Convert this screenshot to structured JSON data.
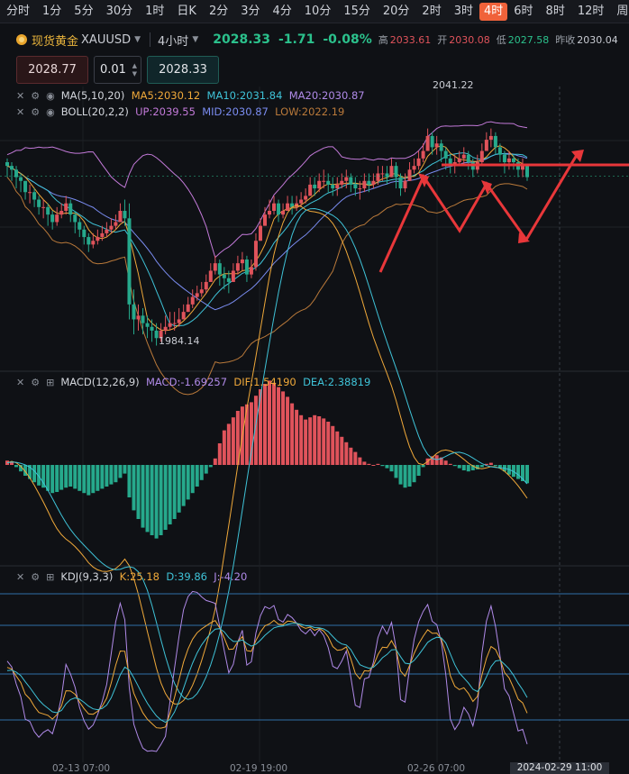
{
  "timeframes": [
    "分时",
    "1分",
    "5分",
    "30分",
    "1时",
    "日K",
    "2分",
    "3分",
    "4分",
    "10分",
    "15分",
    "20分",
    "2时",
    "3时",
    "4时",
    "6时",
    "8时",
    "12时",
    "周K"
  ],
  "active_timeframe": "4时",
  "symbol": {
    "name": "现货黄金",
    "code": "XAUUSD",
    "timeframe": "4小时",
    "price": "2028.33",
    "change": "-1.71",
    "change_pct": "-0.08%",
    "high_label": "高",
    "high": "2033.61",
    "open_label": "开",
    "open": "2030.08",
    "low_label": "低",
    "low": "2027.58",
    "prev_label": "昨收",
    "prev": "2030.04"
  },
  "order": {
    "sell": "2028.77",
    "qty": "0.01",
    "buy": "2028.33"
  },
  "indicators": {
    "ma": {
      "name": "MA(5,10,20)",
      "ma5": "MA5:2030.12",
      "ma10": "MA10:2031.84",
      "ma20": "MA20:2030.87"
    },
    "boll": {
      "name": "BOLL(20,2,2)",
      "up": "UP:2039.55",
      "mid": "MID:2030.87",
      "low": "LOW:2022.19"
    },
    "macd": {
      "name": "MACD(12,26,9)",
      "macd": "MACD:-1.69257",
      "dif": "DIF:1.54190",
      "dea": "DEA:2.38819"
    },
    "kdj": {
      "name": "KDJ(9,3,3)",
      "k": "K:25.18",
      "d": "D:39.86",
      "j": "J:-4.20"
    }
  },
  "annotations": {
    "high_mark": "2041.22",
    "low_mark": "1984.14"
  },
  "x_labels": [
    "02-13 07:00",
    "02-19 19:00",
    "02-26 07:00"
  ],
  "cursor_time": "2024-02-29 11:00",
  "colors": {
    "up": "#e0535b",
    "down": "#26a98c",
    "accent": "#f0623a",
    "annotation": "#e8373a"
  },
  "chart_data": {
    "type": "candlestick",
    "x_labels": [
      "02-13 07:00",
      "02-19 19:00",
      "02-26 07:00"
    ],
    "price_anchors": [
      {
        "label": "2041.22",
        "value": 2041.22
      },
      {
        "label": "1984.14",
        "value": 1984.14
      },
      {
        "label": "2028.33",
        "value": 2028.33
      }
    ],
    "close": [
      2031,
      2030,
      2028,
      2027,
      2024,
      2024,
      2022,
      2020,
      2020,
      2018,
      2016,
      2018,
      2019,
      2021,
      2018,
      2016,
      2014,
      2012,
      2010,
      2011,
      2012,
      2013,
      2014,
      2015,
      2016,
      2019,
      2017,
      1994,
      1990,
      1991,
      1989,
      1988,
      1987,
      1985,
      1987,
      1988,
      1989,
      1989,
      1990,
      1992,
      1994,
      1996,
      1997,
      1998,
      2000,
      2003,
      2005,
      2002,
      2001,
      2000,
      2003,
      2005,
      2006,
      2002,
      2004,
      2011,
      2015,
      2018,
      2019,
      2021,
      2018,
      2019,
      2021,
      2020,
      2021,
      2022,
      2023,
      2026,
      2025,
      2027,
      2027,
      2026,
      2025,
      2026,
      2027,
      2028,
      2026,
      2025,
      2025,
      2027,
      2026,
      2027,
      2029,
      2029,
      2028,
      2031,
      2028,
      2025,
      2027,
      2030,
      2031,
      2033,
      2035,
      2039,
      2036,
      2037,
      2035,
      2033,
      2031,
      2032,
      2033,
      2034,
      2032,
      2030,
      2032,
      2035,
      2038,
      2039,
      2036,
      2034,
      2032,
      2033,
      2032,
      2030,
      2031,
      2028
    ],
    "high": [
      2033,
      2032,
      2031,
      2029,
      2027,
      2026,
      2025,
      2023,
      2022,
      2021,
      2019,
      2020,
      2021,
      2023,
      2022,
      2019,
      2017,
      2015,
      2013,
      2013,
      2014,
      2015,
      2016,
      2017,
      2018,
      2021,
      2022,
      2021,
      1998,
      1994,
      1993,
      1991,
      1990,
      1989,
      1989,
      1991,
      1992,
      1992,
      1993,
      1994,
      1996,
      1998,
      1999,
      2000,
      2002,
      2005,
      2007,
      2006,
      2004,
      2003,
      2005,
      2007,
      2008,
      2007,
      2006,
      2013,
      2017,
      2020,
      2022,
      2023,
      2022,
      2021,
      2023,
      2023,
      2023,
      2024,
      2025,
      2028,
      2028,
      2029,
      2030,
      2029,
      2028,
      2028,
      2029,
      2030,
      2029,
      2028,
      2027,
      2029,
      2029,
      2029,
      2031,
      2031,
      2031,
      2033,
      2032,
      2029,
      2029,
      2032,
      2033,
      2035,
      2037,
      2041,
      2040,
      2039,
      2038,
      2036,
      2034,
      2034,
      2035,
      2036,
      2035,
      2033,
      2034,
      2037,
      2040,
      2041,
      2040,
      2037,
      2035,
      2035,
      2034,
      2033,
      2033,
      2031
    ],
    "low": [
      2028,
      2027,
      2025,
      2024,
      2022,
      2021,
      2020,
      2018,
      2017,
      2015,
      2014,
      2015,
      2017,
      2018,
      2016,
      2013,
      2012,
      2010,
      2008,
      2009,
      2010,
      2011,
      2012,
      2013,
      2014,
      2016,
      2015,
      1990,
      1986,
      1987,
      1986,
      1985,
      1984,
      1983,
      1984,
      1986,
      1987,
      1987,
      1988,
      1990,
      1992,
      1993,
      1995,
      1996,
      1997,
      2000,
      2002,
      1999,
      1998,
      1997,
      2000,
      2002,
      2003,
      2000,
      2001,
      2003,
      2012,
      2015,
      2017,
      2018,
      2016,
      2017,
      2019,
      2018,
      2019,
      2020,
      2021,
      2023,
      2023,
      2024,
      2025,
      2024,
      2023,
      2023,
      2025,
      2025,
      2024,
      2023,
      2022,
      2024,
      2024,
      2025,
      2026,
      2027,
      2026,
      2028,
      2025,
      2023,
      2024,
      2027,
      2029,
      2030,
      2032,
      2035,
      2034,
      2034,
      2032,
      2030,
      2029,
      2029,
      2031,
      2031,
      2030,
      2028,
      2029,
      2031,
      2035,
      2036,
      2034,
      2032,
      2029,
      2030,
      2030,
      2028,
      2028,
      2027
    ],
    "series": [
      {
        "name": "MA5",
        "value_last": "2030.12"
      },
      {
        "name": "MA10",
        "value_last": "2031.84"
      },
      {
        "name": "MA20",
        "value_last": "2030.87"
      },
      {
        "name": "BOLL UP",
        "value_last": "2039.55"
      },
      {
        "name": "BOLL MID",
        "value_last": "2030.87"
      },
      {
        "name": "BOLL LOW",
        "value_last": "2022.19"
      }
    ],
    "macd_hist": [
      0.4,
      0.3,
      -0.2,
      -0.6,
      -1.0,
      -1.3,
      -1.6,
      -1.9,
      -2.1,
      -2.4,
      -2.6,
      -2.5,
      -2.3,
      -2.1,
      -2.0,
      -2.2,
      -2.4,
      -2.6,
      -2.8,
      -2.6,
      -2.4,
      -2.2,
      -2.0,
      -1.8,
      -1.6,
      -1.2,
      -0.8,
      -3.0,
      -4.2,
      -5.0,
      -5.8,
      -6.2,
      -6.5,
      -6.8,
      -6.5,
      -6.0,
      -5.5,
      -5.0,
      -4.4,
      -3.8,
      -3.2,
      -2.6,
      -2.0,
      -1.4,
      -0.8,
      -0.2,
      0.6,
      2.0,
      3.2,
      3.8,
      4.4,
      5.0,
      5.4,
      5.6,
      5.8,
      6.4,
      7.0,
      7.5,
      7.8,
      7.6,
      7.2,
      6.8,
      6.3,
      5.7,
      5.1,
      4.6,
      4.2,
      4.4,
      4.6,
      4.5,
      4.3,
      4.0,
      3.6,
      3.1,
      2.6,
      2.1,
      1.6,
      1.2,
      0.7,
      0.3,
      0.1,
      0.0,
      0.1,
      -0.1,
      -0.3,
      -0.6,
      -1.2,
      -1.8,
      -2.1,
      -2.0,
      -1.6,
      -1.0,
      -0.2,
      0.6,
      0.8,
      0.9,
      0.7,
      0.4,
      0.1,
      -0.1,
      -0.3,
      -0.5,
      -0.6,
      -0.5,
      -0.4,
      -0.2,
      0.1,
      0.2,
      -0.1,
      -0.3,
      -0.6,
      -0.9,
      -1.1,
      -1.3,
      -1.5,
      -1.69
    ],
    "kdj": {
      "k_last": 25.18,
      "d_last": 39.86,
      "j_last": -4.2
    }
  }
}
